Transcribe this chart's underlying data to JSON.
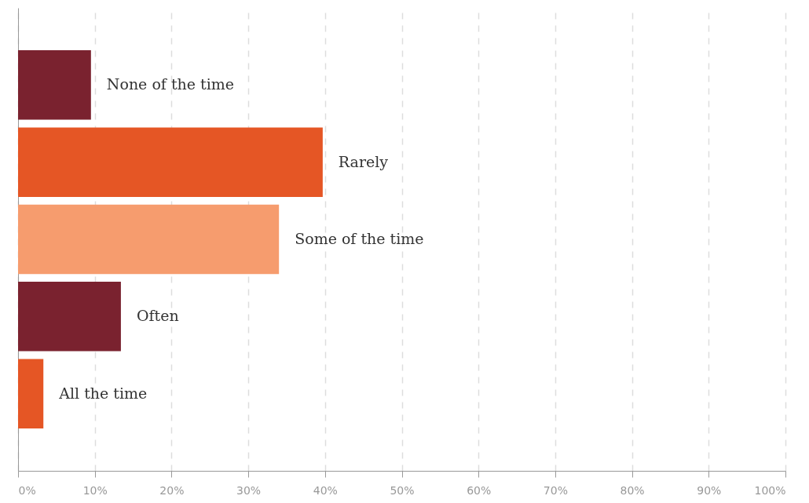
{
  "chart_data": {
    "type": "bar",
    "orientation": "horizontal",
    "categories": [
      "None of the time",
      "Rarely",
      "Some of the time",
      "Often",
      "All the time"
    ],
    "values": [
      9.5,
      39.7,
      34.0,
      13.4,
      3.3
    ],
    "colors": [
      "#7a222f",
      "#e55625",
      "#f69c6e",
      "#7a222f",
      "#e55625"
    ],
    "xlim": [
      0,
      100
    ],
    "xticks": [
      {
        "value": 0,
        "label": "0%"
      },
      {
        "value": 10,
        "label": "10%"
      },
      {
        "value": 20,
        "label": "20%"
      },
      {
        "value": 30,
        "label": "30%"
      },
      {
        "value": 40,
        "label": "40%"
      },
      {
        "value": 50,
        "label": "50%"
      },
      {
        "value": 60,
        "label": "60%"
      },
      {
        "value": 70,
        "label": "70%"
      },
      {
        "value": 80,
        "label": "80%"
      },
      {
        "value": 90,
        "label": "90%"
      },
      {
        "value": 100,
        "label": "100%"
      }
    ],
    "grid": "x",
    "tick_labels": "x"
  }
}
